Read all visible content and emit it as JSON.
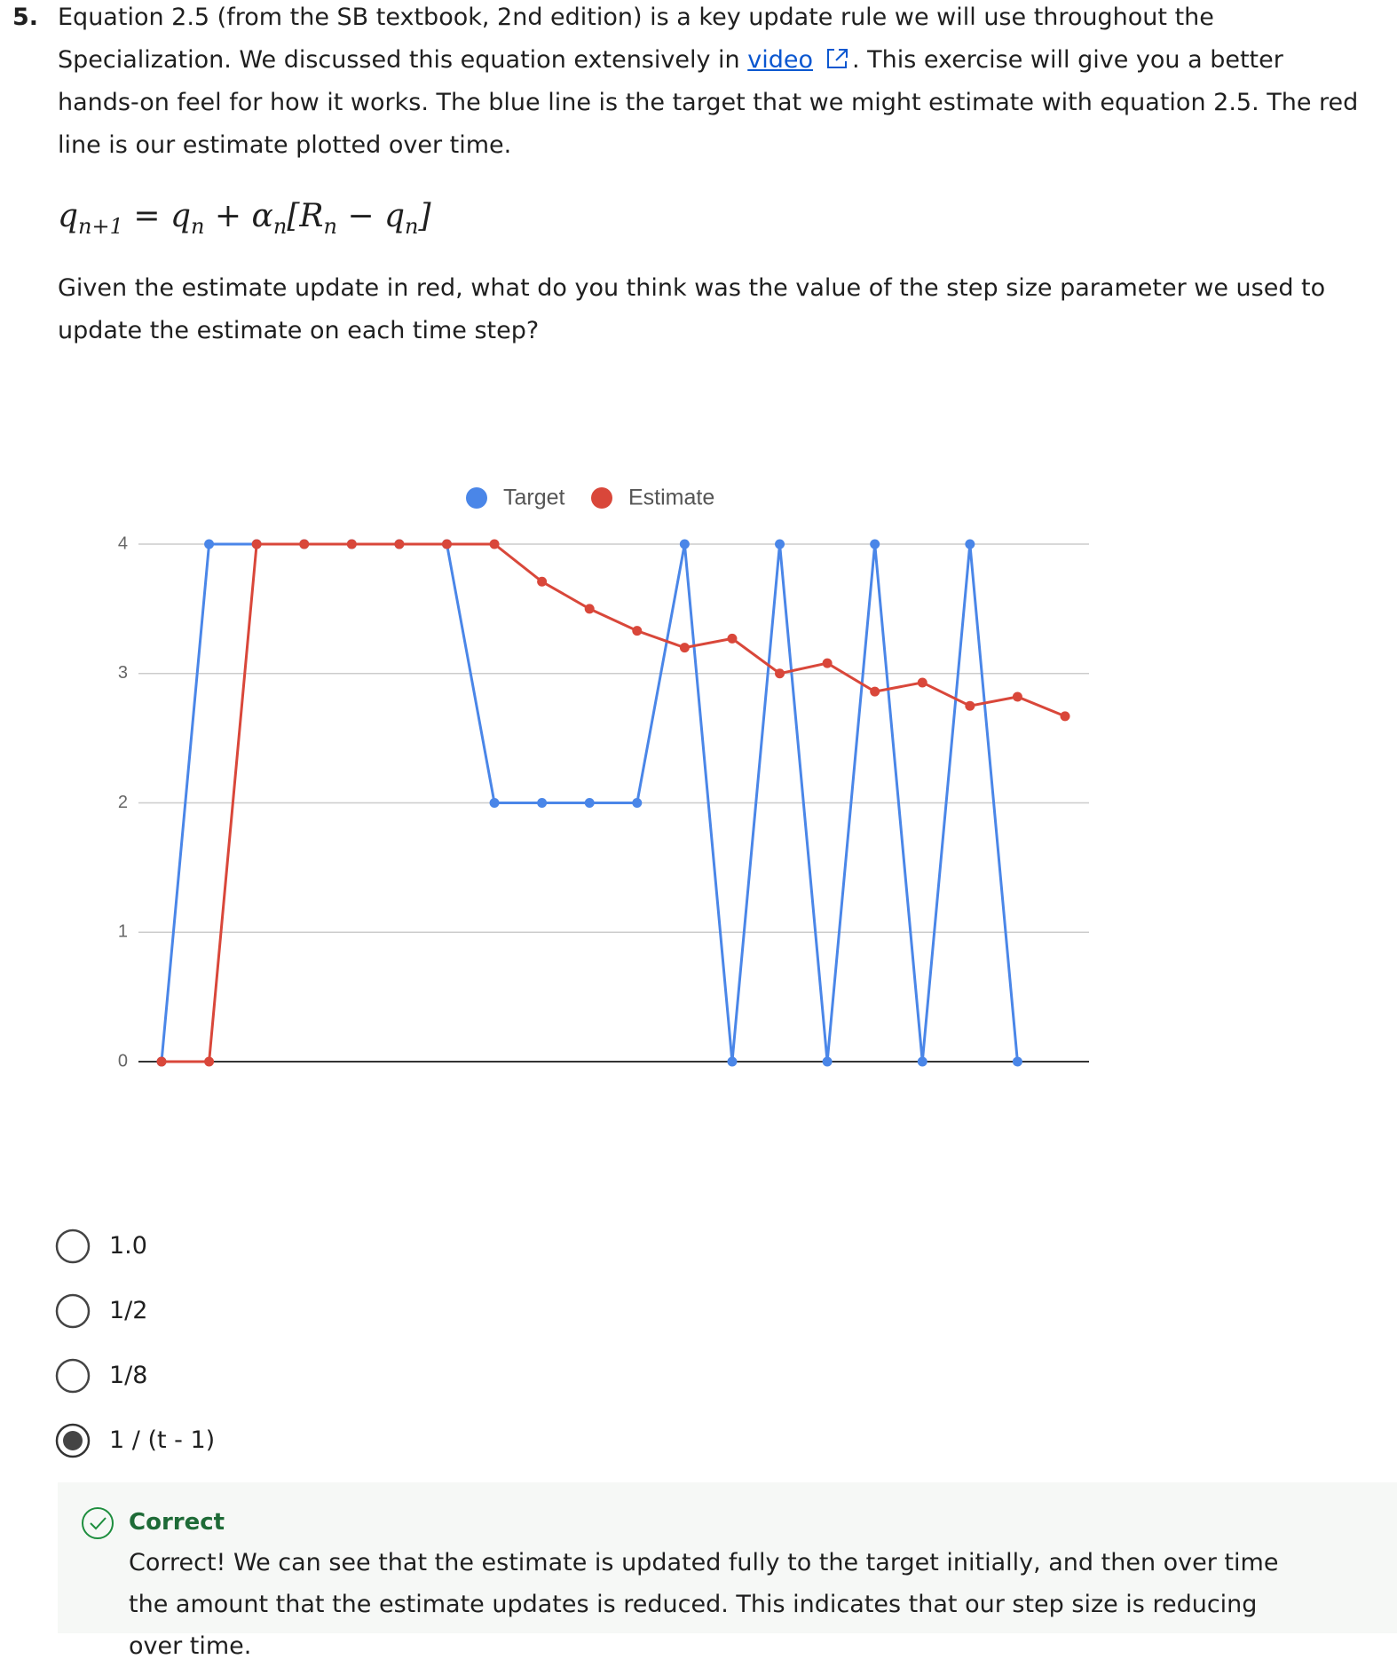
{
  "question": {
    "number": "5.",
    "para1_before": "Equation 2.5 (from the SB textbook, 2nd edition) is a key update rule we will use throughout the Specialization. We discussed this equation extensively in ",
    "link": "video",
    "para1_after": ". This exercise will give you a better hands-on feel for how it works. The blue line is the target that we might estimate with equation 2.5. The red line is our estimate plotted over time.",
    "equation": [
      "q",
      "n+1",
      " = q",
      "n",
      " + α",
      "n",
      "[R",
      "n",
      " − q",
      "n",
      "]"
    ],
    "para2": "Given the estimate update in red, what do you think was the value of the step size parameter we used to update the estimate on each time step?"
  },
  "chart_data": {
    "type": "line",
    "x": [
      0,
      1,
      2,
      3,
      4,
      5,
      6,
      7,
      8,
      9,
      10,
      11,
      12,
      13,
      14,
      15,
      16,
      17,
      18,
      19
    ],
    "xlim": [
      0,
      19
    ],
    "ylim": [
      0,
      4
    ],
    "yticks": [
      0,
      1,
      2,
      3,
      4
    ],
    "grid": true,
    "legend": "top",
    "series": [
      {
        "name": "Target",
        "color": "#4a86e8",
        "values": [
          0,
          4,
          4,
          4,
          4,
          4,
          4,
          2,
          2,
          2,
          2,
          4,
          0,
          4,
          0,
          4,
          0,
          4,
          0,
          null
        ]
      },
      {
        "name": "Estimate",
        "color": "#d9473a",
        "values": [
          0,
          0,
          4,
          4,
          4,
          4,
          4,
          4,
          3.71,
          3.5,
          3.33,
          3.2,
          3.27,
          3.0,
          3.08,
          2.86,
          2.93,
          2.75,
          2.82,
          2.67
        ]
      }
    ]
  },
  "options": [
    "1.0",
    "1/2",
    "1/8",
    "1 / (t - 1)"
  ],
  "selected": 3,
  "feedback": {
    "title": "Correct",
    "text": "Correct! We can see that the estimate is updated fully to the target initially, and then over time the amount that the estimate updates is reduced. This indicates that our step size is reducing over time."
  }
}
